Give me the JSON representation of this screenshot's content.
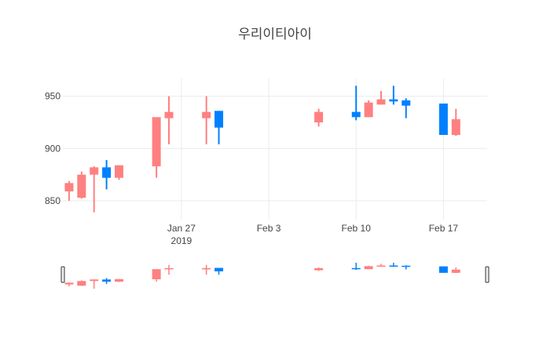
{
  "chart_data": {
    "type": "candlestick",
    "title": "우리이티아이",
    "xlabel": "",
    "ylabel": "",
    "ylim": [
      832,
      967
    ],
    "xlim": [
      "2019-01-17T12:00",
      "2019-02-20T12:00"
    ],
    "grid": true,
    "legend": "none",
    "rangeslider": true,
    "y_ticks": [
      850,
      900,
      950
    ],
    "x_ticks": [
      {
        "date": "2019-01-27",
        "label": "Jan 27",
        "sublabel": "2019"
      },
      {
        "date": "2019-02-03",
        "label": "Feb 3",
        "sublabel": ""
      },
      {
        "date": "2019-02-10",
        "label": "Feb 10",
        "sublabel": ""
      },
      {
        "date": "2019-02-17",
        "label": "Feb 17",
        "sublabel": ""
      }
    ],
    "colors": {
      "increasing": "#1f77b4",
      "decreasing": "#ff7f7f",
      "increasing_fill": "#0080ff",
      "decreasing_fill": "#ff8080"
    },
    "candles": [
      {
        "date": "2019-01-18",
        "open": 867,
        "high": 869,
        "low": 850,
        "close": 859
      },
      {
        "date": "2019-01-19",
        "open": 875,
        "high": 878,
        "low": 852,
        "close": 853
      },
      {
        "date": "2019-01-20",
        "open": 882,
        "high": 883,
        "low": 839,
        "close": 875
      },
      {
        "date": "2019-01-21",
        "open": 872,
        "high": 889,
        "low": 861,
        "close": 882
      },
      {
        "date": "2019-01-22",
        "open": 884,
        "high": 884,
        "low": 870,
        "close": 872
      },
      {
        "date": "2019-01-25",
        "open": 930,
        "high": 930,
        "low": 872,
        "close": 883
      },
      {
        "date": "2019-01-26",
        "open": 935,
        "high": 950,
        "low": 904,
        "close": 929
      },
      {
        "date": "2019-01-29",
        "open": 935,
        "high": 950,
        "low": 904,
        "close": 929
      },
      {
        "date": "2019-01-30",
        "open": 920,
        "high": 936,
        "low": 904,
        "close": 936
      },
      {
        "date": "2019-02-07",
        "open": 935,
        "high": 938,
        "low": 921,
        "close": 925
      },
      {
        "date": "2019-02-10",
        "open": 930,
        "high": 960,
        "low": 927,
        "close": 935
      },
      {
        "date": "2019-02-11",
        "open": 944,
        "high": 946,
        "low": 930,
        "close": 930
      },
      {
        "date": "2019-02-12",
        "open": 947,
        "high": 955,
        "low": 942,
        "close": 942
      },
      {
        "date": "2019-02-13",
        "open": 945,
        "high": 960,
        "low": 942,
        "close": 947
      },
      {
        "date": "2019-02-14",
        "open": 941,
        "high": 948,
        "low": 929,
        "close": 946
      },
      {
        "date": "2019-02-17",
        "open": 913,
        "high": 943,
        "low": 913,
        "close": 943
      },
      {
        "date": "2019-02-18",
        "open": 928,
        "high": 938,
        "low": 912,
        "close": 913
      }
    ]
  }
}
